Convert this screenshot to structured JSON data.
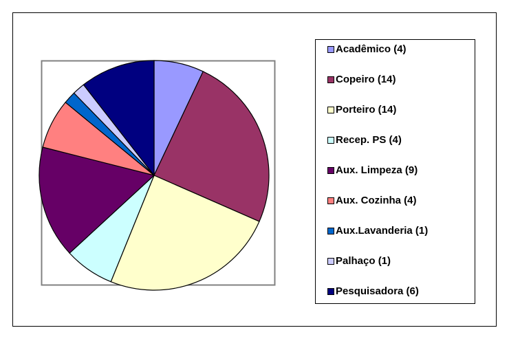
{
  "chart_data": {
    "type": "pie",
    "categories": [
      "Acadêmico (4)",
      "Copeiro (14)",
      "Porteiro (14)",
      "Recep. PS (4)",
      "Aux. Limpeza (9)",
      "Aux. Cozinha (4)",
      "Aux.Lavanderia (1)",
      "Palhaço (1)",
      "Pesquisadora (6)"
    ],
    "values": [
      4,
      14,
      14,
      4,
      9,
      4,
      1,
      1,
      6
    ],
    "colors": [
      "#9999ff",
      "#993366",
      "#ffffcc",
      "#ccffff",
      "#660066",
      "#ff8080",
      "#0066cc",
      "#ccccff",
      "#000080"
    ],
    "legend": "right"
  }
}
